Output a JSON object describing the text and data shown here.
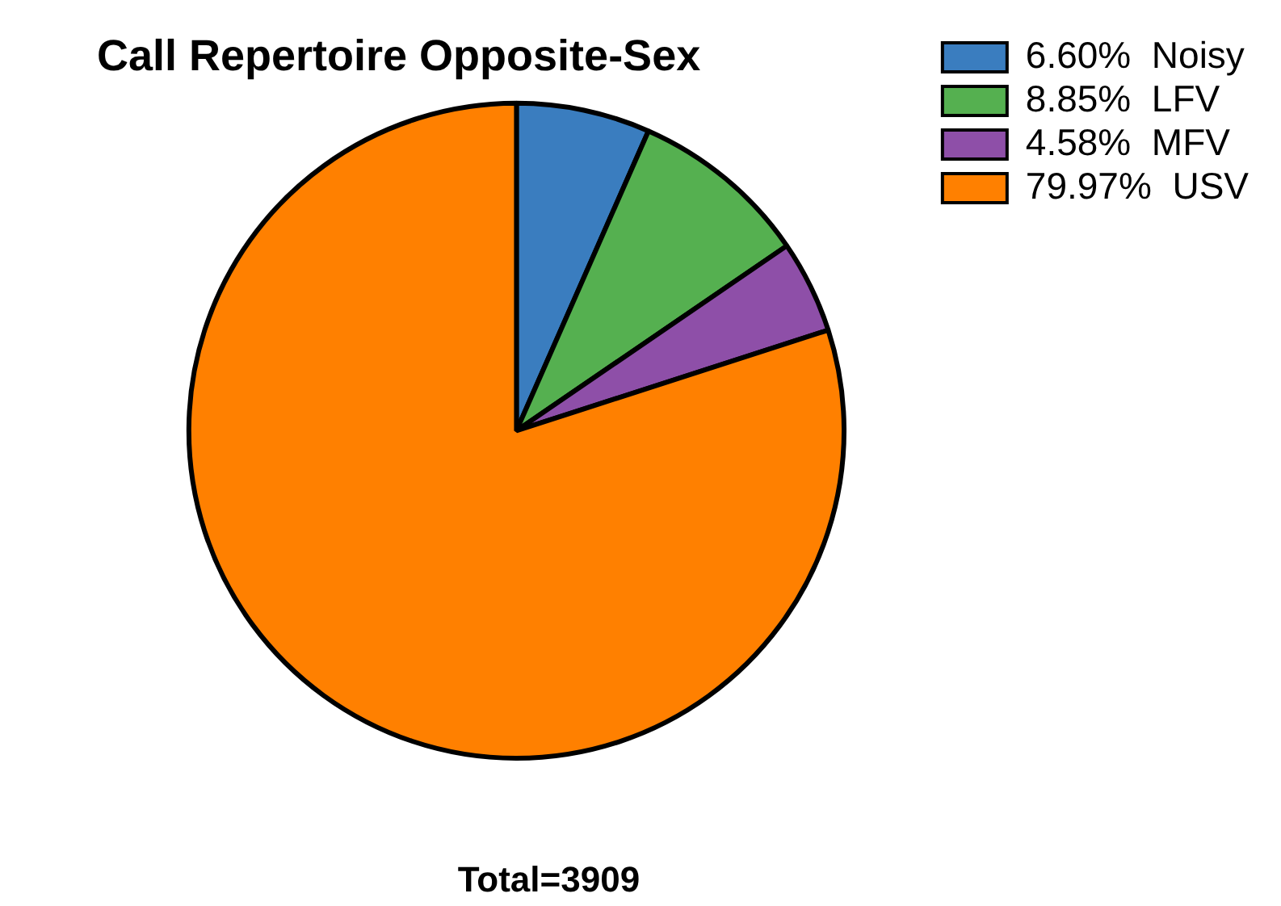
{
  "chart_data": {
    "type": "pie",
    "title": "Call Repertoire Opposite-Sex",
    "categories": [
      "6.60%  Noisy",
      "8.85%  LFV",
      "4.58%  MFV",
      "79.97%  USV"
    ],
    "values": [
      6.6,
      8.85,
      4.58,
      79.97
    ],
    "colors": [
      "#3a7dbf",
      "#55b050",
      "#8e4fa8",
      "#ff8000"
    ],
    "legend": "top right",
    "annotations": [
      "Total=3909"
    ]
  }
}
